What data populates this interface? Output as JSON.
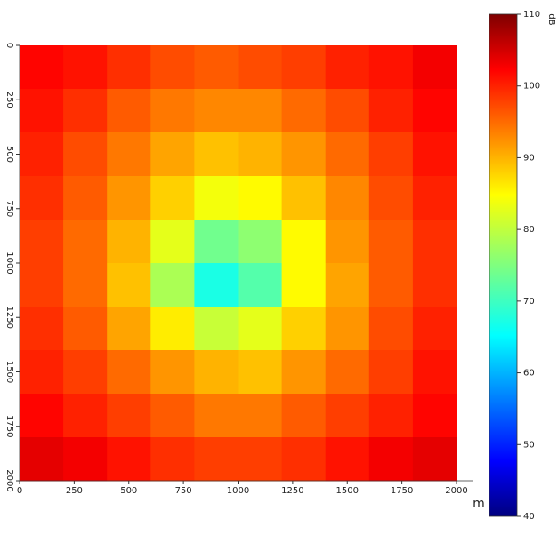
{
  "chart_data": {
    "type": "heatmap",
    "x": [
      100,
      300,
      500,
      700,
      900,
      1100,
      1300,
      1500,
      1700,
      1900
    ],
    "y": [
      100,
      300,
      500,
      700,
      900,
      1100,
      1300,
      1500,
      1700,
      1900
    ],
    "z": [
      [
        101,
        100,
        98,
        96,
        95,
        96,
        97,
        99,
        100,
        102
      ],
      [
        100,
        98,
        95,
        93,
        92,
        92,
        94,
        96,
        99,
        101
      ],
      [
        99,
        96,
        93,
        90,
        88,
        89,
        91,
        94,
        97,
        100
      ],
      [
        98,
        95,
        91,
        87,
        83,
        84,
        88,
        92,
        96,
        99
      ],
      [
        97,
        94,
        89,
        82,
        74,
        76,
        84,
        91,
        95,
        98
      ],
      [
        97,
        94,
        88,
        78,
        68,
        72,
        84,
        90,
        95,
        98
      ],
      [
        98,
        95,
        90,
        85,
        80,
        82,
        87,
        91,
        96,
        99
      ],
      [
        99,
        97,
        94,
        91,
        89,
        88,
        91,
        94,
        97,
        100
      ],
      [
        101,
        99,
        97,
        95,
        93,
        93,
        95,
        97,
        99,
        101
      ],
      [
        103,
        102,
        100,
        98,
        97,
        97,
        98,
        100,
        102,
        103
      ]
    ],
    "xlim": [
      0,
      2000
    ],
    "xticks": [
      0,
      250,
      500,
      750,
      1000,
      1250,
      1500,
      1750,
      2000
    ],
    "ylim": [
      0,
      2000
    ],
    "yticks": [
      0,
      250,
      500,
      750,
      1000,
      1250,
      1500,
      1750,
      2000
    ],
    "y_inverted": true,
    "x_label": "m",
    "colorbar_label": "dB",
    "clim": [
      40,
      110
    ],
    "cticks": [
      40,
      50,
      60,
      70,
      80,
      90,
      100,
      110
    ],
    "colormap": "jet"
  }
}
